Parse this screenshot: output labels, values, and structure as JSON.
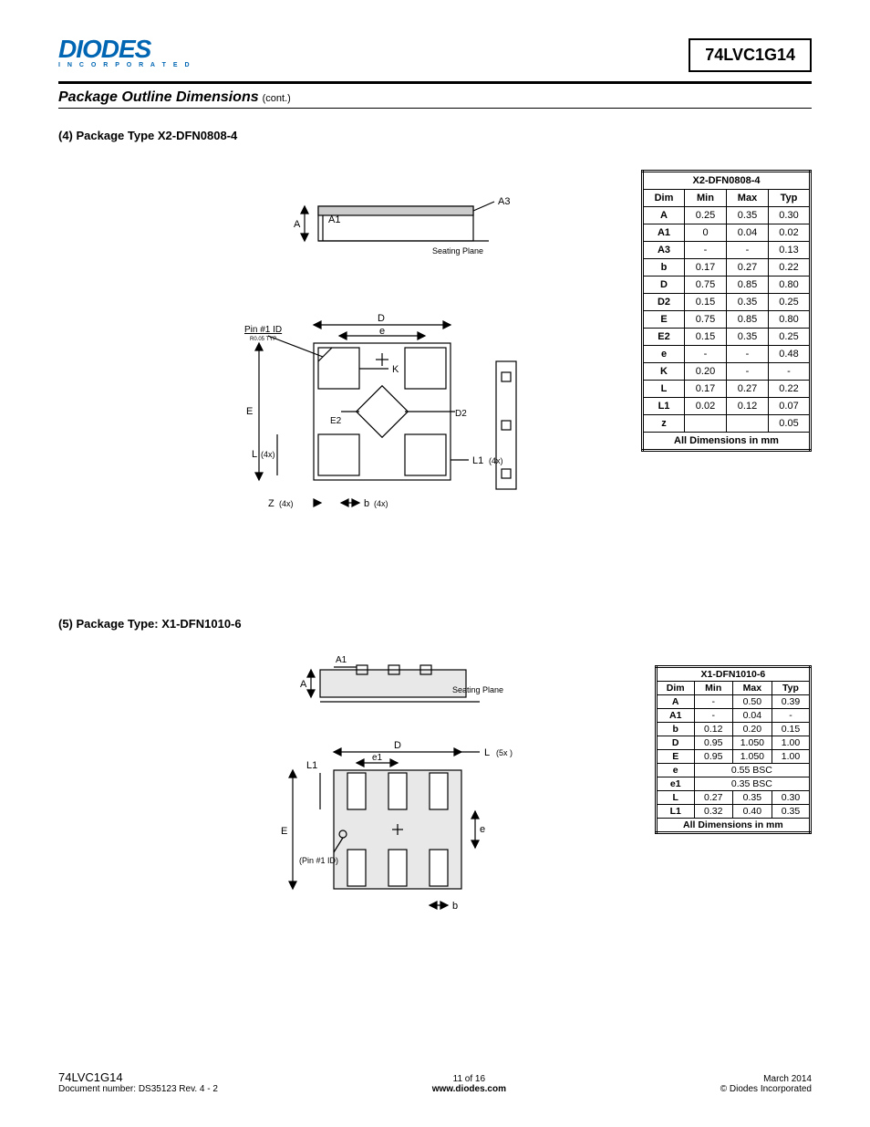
{
  "logo": {
    "main": "DIODES",
    "sub": "I N C O R P O R A T E D",
    "reg": "®"
  },
  "part_number": "74LVC1G14",
  "section": {
    "title": "Package Outline Dimensions",
    "cont": "(cont.)"
  },
  "pkg4": {
    "heading": "(4)  Package Type X2-DFN0808-4",
    "table_title": "X2-DFN0808-4",
    "columns": [
      "Dim",
      "Min",
      "Max",
      "Typ"
    ],
    "rows": [
      [
        "A",
        "0.25",
        "0.35",
        "0.30"
      ],
      [
        "A1",
        "0",
        "0.04",
        "0.02"
      ],
      [
        "A3",
        "-",
        "-",
        "0.13"
      ],
      [
        "b",
        "0.17",
        "0.27",
        "0.22"
      ],
      [
        "D",
        "0.75",
        "0.85",
        "0.80"
      ],
      [
        "D2",
        "0.15",
        "0.35",
        "0.25"
      ],
      [
        "E",
        "0.75",
        "0.85",
        "0.80"
      ],
      [
        "E2",
        "0.15",
        "0.35",
        "0.25"
      ],
      [
        "e",
        "-",
        "-",
        "0.48"
      ],
      [
        "K",
        "0.20",
        "-",
        "-"
      ],
      [
        "L",
        "0.17",
        "0.27",
        "0.22"
      ],
      [
        "L1",
        "0.02",
        "0.12",
        "0.07"
      ],
      [
        "z",
        "",
        "",
        "0.05"
      ]
    ],
    "footer_row": "All Dimensions in mm",
    "labels": {
      "A": "A",
      "A1": "A1",
      "A3": "A3",
      "seating": "Seating Plane",
      "D": "D",
      "e": "e",
      "pin1": "Pin #1 ID",
      "pin1sub": "R0.05 TYP",
      "K": "K",
      "E": "E",
      "E2": "E2",
      "D2": "D2",
      "L": "L",
      "L4x": "(4x)",
      "L1": "L1",
      "L14x": "(4x)",
      "Z": "Z",
      "Z4x": "(4x)",
      "b": "b",
      "b4x": "(4x)"
    }
  },
  "pkg5": {
    "heading": "(5)  Package Type: X1-DFN1010-6",
    "table_title": "X1-DFN1010-6",
    "columns": [
      "Dim",
      "Min",
      "Max",
      "Typ"
    ],
    "rows": [
      [
        "A",
        "-",
        "0.50",
        "0.39"
      ],
      [
        "A1",
        "-",
        "0.04",
        "-"
      ],
      [
        "b",
        "0.12",
        "0.20",
        "0.15"
      ],
      [
        "D",
        "0.95",
        "1.050",
        "1.00"
      ],
      [
        "E",
        "0.95",
        "1.050",
        "1.00"
      ]
    ],
    "span_rows": [
      [
        "e",
        "0.55 BSC"
      ],
      [
        "e1",
        "0.35 BSC"
      ]
    ],
    "rows2": [
      [
        "L",
        "0.27",
        "0.35",
        "0.30"
      ],
      [
        "L1",
        "0.32",
        "0.40",
        "0.35"
      ]
    ],
    "footer_row": "All Dimensions in mm",
    "labels": {
      "A": "A",
      "A1": "A1",
      "seating": "Seating Plane",
      "D": "D",
      "L": "L",
      "L5x": "(5x )",
      "L1": "L1",
      "e1": "e1",
      "E": "E",
      "e": "e",
      "pin1": "(Pin #1 ID)",
      "b": "b"
    }
  },
  "footer": {
    "part": "74LVC1G14",
    "doc": "Document number: DS35123 Rev. 4 - 2",
    "page": "11 of 16",
    "url": "www.diodes.com",
    "date": "March 2014",
    "copy": "© Diodes Incorporated"
  }
}
